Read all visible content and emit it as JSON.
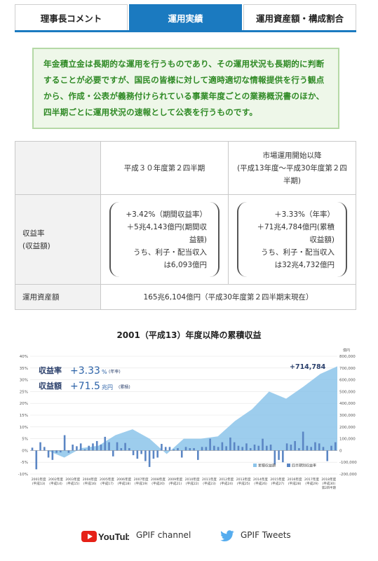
{
  "tabs": [
    {
      "label": "理事長コメント",
      "active": false
    },
    {
      "label": "運用実績",
      "active": true
    },
    {
      "label": "運用資産額・構成割合",
      "active": false
    }
  ],
  "intro": {
    "text": "年金積立金は長期的な運用を行うものであり、その運用状況も長期的に判断することが必要ですが、国民の皆様に対して適時適切な情報提供を行う観点から、作成・公表が義務付けられている事業年度ごとの業務概況書のほか、四半期ごとに運用状況の速報として公表を行うものです。"
  },
  "table": {
    "col1_header": "平成３０年度第２四半期",
    "col2_header_line1": "市場運用開始以降",
    "col2_header_line2": "(平成13年度～平成30年度第２四",
    "col2_header_line3": "半期)",
    "row1_head_line1": "収益率",
    "row1_head_line2": "(収益額)",
    "q_lines": [
      "+3.42%（期間収益率）",
      "＋5兆4,143億円(期間収",
      "益額)",
      "うち、利子・配当収入",
      "は6,093億円"
    ],
    "c_lines": [
      "＋3.33%（年率）",
      "＋71兆4,784億円(累積",
      "収益額)",
      "うち、利子・配当収入",
      "は32兆4,732億円"
    ],
    "row2_head": "運用資産額",
    "row2_value": "165兆6,104億円（平成30年度第２四半期末現在）"
  },
  "chart_title": "2001（平成13）年度以降の累積収益",
  "chart_data": {
    "type": "bar+area",
    "left_axis": {
      "ticks": [
        "40%",
        "35%",
        "30%",
        "25%",
        "20%",
        "15%",
        "10%",
        "5%",
        "0%",
        "-5%",
        "-10%"
      ],
      "range": [
        -10,
        40
      ]
    },
    "right_axis": {
      "unit": "億円",
      "ticks": [
        "800,000",
        "700,000",
        "600,000",
        "500,000",
        "400,000",
        "300,000",
        "200,000",
        "100,000",
        "0",
        "-100,000",
        "-200,000"
      ],
      "range": [
        -200000,
        800000
      ]
    },
    "headline_rate_label": "収益率",
    "headline_rate_value": "+3.33",
    "headline_rate_unit": "%",
    "headline_rate_note": "(年率)",
    "headline_amount_label": "収益額",
    "headline_amount_value": "+71.5",
    "headline_amount_unit": "兆円",
    "headline_amount_note": "(累積)",
    "last_value_label": "+714,784",
    "legend": [
      "累積収益額",
      "四半期別収益率"
    ],
    "x_categories": [
      [
        "2001年度",
        "(平成13)"
      ],
      [
        "2002年度",
        "(平成14)"
      ],
      [
        "2003年度",
        "(平成15)"
      ],
      [
        "2004年度",
        "(平成16)"
      ],
      [
        "2005年度",
        "(平成17)"
      ],
      [
        "2006年度",
        "(平成18)"
      ],
      [
        "2007年度",
        "(平成19)"
      ],
      [
        "2008年度",
        "(平成20)"
      ],
      [
        "2009年度",
        "(平成21)"
      ],
      [
        "2010年度",
        "(平成22)"
      ],
      [
        "2011年度",
        "(平成23)"
      ],
      [
        "2012年度",
        "(平成24)"
      ],
      [
        "2013年度",
        "(平成25)"
      ],
      [
        "2014年度",
        "(平成26)"
      ],
      [
        "2015年度",
        "(平成27)"
      ],
      [
        "2016年度",
        "(平成28)"
      ],
      [
        "2017年度",
        "(平成29)"
      ],
      [
        "2018年度",
        "(平成30)"
      ]
    ],
    "last_category_extra": "第2四半期",
    "cumulative_by_year": [
      0,
      -60000,
      20000,
      40000,
      130000,
      180000,
      100000,
      -30000,
      100000,
      100000,
      120000,
      250000,
      350000,
      500000,
      440000,
      540000,
      650000,
      714784
    ],
    "quarterly_rates": [
      1.2,
      -8.0,
      3.5,
      1.5,
      -3.0,
      -4.0,
      -1.0,
      -0.8,
      6.5,
      -1.0,
      2.5,
      1.8,
      3.0,
      0.5,
      2.0,
      3.0,
      4.0,
      2.5,
      5.8,
      3.5,
      -2.5,
      3.5,
      1.0,
      3.2,
      1.0,
      -2.0,
      -3.5,
      -1.5,
      -4.5,
      -7.0,
      -3.5,
      -3.0,
      2.8,
      1.5,
      1.5,
      0.5,
      1.0,
      -3.0,
      1.5,
      1.0,
      1.0,
      -4.0,
      1.5,
      1.5,
      5.0,
      2.0,
      1.5,
      3.5,
      1.8,
      5.5,
      3.5,
      2.0,
      1.5,
      3.0,
      1.0,
      2.5,
      2.0,
      5.0,
      2.0,
      2.5,
      -6.0,
      -4.0,
      -5.0,
      3.0,
      2.5,
      4.0,
      1.0,
      8.0,
      2.0,
      1.5,
      3.5,
      3.0,
      1.5,
      -4.5,
      2.0,
      3.5
    ]
  },
  "footer": {
    "youtube_logo_text": "YouTube",
    "youtube_label": "GPIF channel",
    "twitter_label": "GPIF Tweets"
  },
  "colors": {
    "accent_blue": "#1b7ac0",
    "intro_green": "#2f8a25",
    "area_blue": "#8cc4ea",
    "bar_blue": "#5b86c4",
    "headline_blue": "#2d63a8"
  }
}
